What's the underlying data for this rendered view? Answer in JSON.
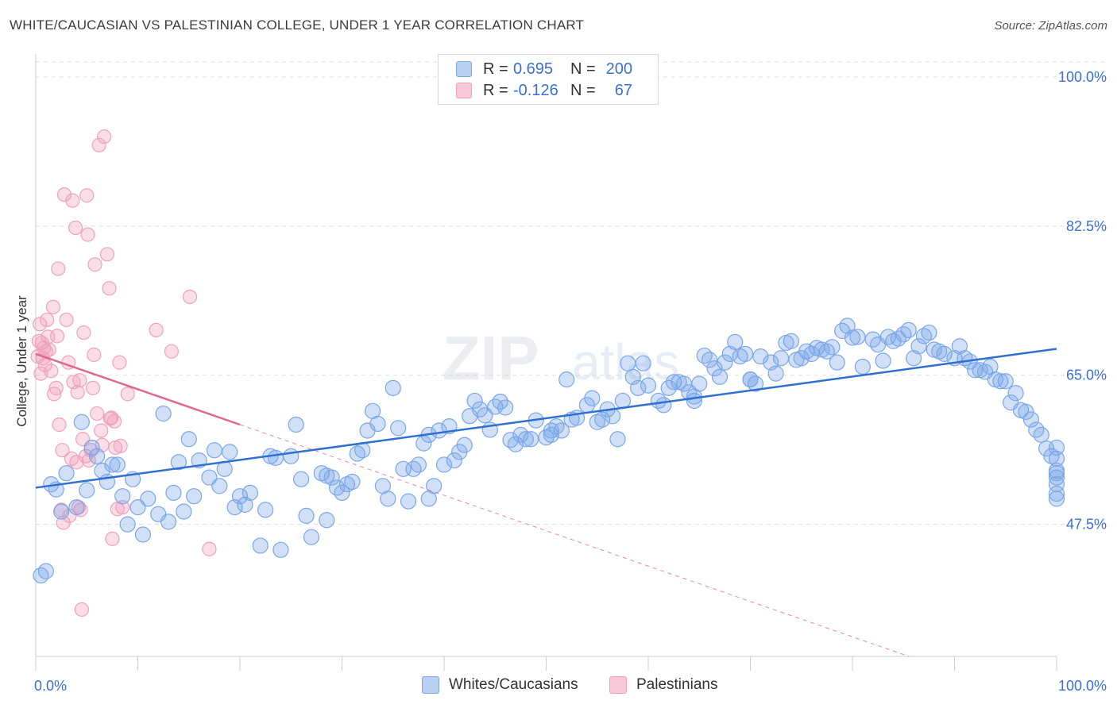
{
  "title": "WHITE/CAUCASIAN VS PALESTINIAN COLLEGE, UNDER 1 YEAR CORRELATION CHART",
  "source": "Source: ZipAtlas.com",
  "watermark": "ZIPatlas",
  "legend": {
    "rows": [
      {
        "r_label": "R =",
        "r_value": "0.695",
        "n_label": "N =",
        "n_value": "200"
      },
      {
        "r_label": "R =",
        "r_value": "-0.126",
        "n_label": "N =",
        "n_value": "67"
      }
    ]
  },
  "bottom_legend": [
    "Whites/Caucasians",
    "Palestinians"
  ],
  "chart_data": {
    "type": "scatter",
    "title": "WHITE/CAUCASIAN VS PALESTINIAN COLLEGE, UNDER 1 YEAR CORRELATION CHART",
    "xlabel": "",
    "ylabel": "College, Under 1 year",
    "xlim": [
      0,
      100
    ],
    "ylim": [
      32,
      100
    ],
    "x_tick_labels": [
      "0.0%",
      "100.0%"
    ],
    "y_ticks": [
      47.5,
      65.0,
      82.5,
      100.0
    ],
    "y_tick_labels": [
      "47.5%",
      "65.0%",
      "82.5%",
      "100.0%"
    ],
    "grid": true,
    "colors": {
      "blue": "#7aa7e8",
      "blue_line": "#2f6fd0",
      "pink": "#f0a1bb",
      "pink_line": "#e0678f",
      "tick_text": "#3a6fd8"
    },
    "series": [
      {
        "name": "Whites/Caucasians",
        "color": "#7aa7e8",
        "trend": {
          "x": [
            0,
            100
          ],
          "y": [
            51.8,
            68.1
          ]
        },
        "points": [
          [
            0.5,
            41.5
          ],
          [
            1,
            42
          ],
          [
            1.5,
            52.2
          ],
          [
            2,
            51.6
          ],
          [
            2.5,
            49
          ],
          [
            3,
            53.5
          ],
          [
            4,
            49.5
          ],
          [
            4.5,
            59.5
          ],
          [
            5,
            51.5
          ],
          [
            5.5,
            56.5
          ],
          [
            6,
            55.5
          ],
          [
            6.5,
            53.8
          ],
          [
            7,
            52.5
          ],
          [
            7.5,
            54.5
          ],
          [
            8,
            54.5
          ],
          [
            8.5,
            50.8
          ],
          [
            9,
            47.5
          ],
          [
            9.5,
            52.8
          ],
          [
            10,
            49.5
          ],
          [
            10.5,
            46.3
          ],
          [
            11,
            50.5
          ],
          [
            12,
            48.7
          ],
          [
            12.5,
            60.5
          ],
          [
            13,
            47.8
          ],
          [
            13.5,
            51.2
          ],
          [
            14,
            54.8
          ],
          [
            14.5,
            49
          ],
          [
            15,
            57.5
          ],
          [
            15.5,
            50.8
          ],
          [
            16,
            55
          ],
          [
            17,
            53
          ],
          [
            17.5,
            56.2
          ],
          [
            18,
            52
          ],
          [
            18.5,
            54
          ],
          [
            19,
            56
          ],
          [
            19.5,
            49.5
          ],
          [
            20,
            50.8
          ],
          [
            20.5,
            49.8
          ],
          [
            21,
            51.2
          ],
          [
            22,
            45
          ],
          [
            22.5,
            49.2
          ],
          [
            23,
            55.5
          ],
          [
            23.5,
            55.3
          ],
          [
            24,
            44.5
          ],
          [
            25,
            55.5
          ],
          [
            25.5,
            59.2
          ],
          [
            26,
            52.8
          ],
          [
            26.5,
            48.5
          ],
          [
            27,
            46
          ],
          [
            28,
            53.5
          ],
          [
            28.5,
            48
          ],
          [
            29,
            53
          ],
          [
            29.5,
            51.8
          ],
          [
            30,
            51.2
          ],
          [
            30.5,
            52.2
          ],
          [
            31,
            52.5
          ],
          [
            31.5,
            55.8
          ],
          [
            32,
            56.2
          ],
          [
            32.5,
            58.5
          ],
          [
            33,
            60.8
          ],
          [
            33.5,
            59.3
          ],
          [
            34,
            52
          ],
          [
            34.5,
            50.5
          ],
          [
            35,
            63.5
          ],
          [
            35.5,
            58.8
          ],
          [
            36,
            54
          ],
          [
            36.5,
            50.2
          ],
          [
            37,
            54
          ],
          [
            37.5,
            54.5
          ],
          [
            38,
            57
          ],
          [
            38.5,
            50.5
          ],
          [
            39,
            52
          ],
          [
            39.5,
            58.5
          ],
          [
            40,
            54.5
          ],
          [
            40.5,
            59
          ],
          [
            41,
            55
          ],
          [
            41.5,
            56
          ],
          [
            42,
            56.8
          ],
          [
            42.5,
            60.2
          ],
          [
            43,
            62
          ],
          [
            43.5,
            61
          ],
          [
            44,
            60.3
          ],
          [
            44.5,
            58.6
          ],
          [
            45,
            61.3
          ],
          [
            45.5,
            61.9
          ],
          [
            46,
            61.2
          ],
          [
            46.5,
            57.4
          ],
          [
            47,
            56.9
          ],
          [
            47.5,
            58
          ],
          [
            48,
            57.5
          ],
          [
            48.5,
            57.5
          ],
          [
            49,
            59.7
          ],
          [
            50,
            57.7
          ],
          [
            50.5,
            58.5
          ],
          [
            51,
            59
          ],
          [
            51.5,
            58.5
          ],
          [
            52,
            64.5
          ],
          [
            52.5,
            59.8
          ],
          [
            53,
            60
          ],
          [
            54,
            61.5
          ],
          [
            54.5,
            62.3
          ],
          [
            55,
            59.5
          ],
          [
            55.5,
            59.8
          ],
          [
            56,
            61
          ],
          [
            56.5,
            60.2
          ],
          [
            57,
            57.5
          ],
          [
            57.5,
            62
          ],
          [
            58,
            66.4
          ],
          [
            58.5,
            64.8
          ],
          [
            59,
            63.5
          ],
          [
            59.5,
            66.4
          ],
          [
            60,
            63.8
          ],
          [
            61,
            62
          ],
          [
            61.5,
            61.5
          ],
          [
            62,
            63.5
          ],
          [
            62.5,
            64.2
          ],
          [
            63,
            64.2
          ],
          [
            63.5,
            64
          ],
          [
            64,
            63
          ],
          [
            64.5,
            62.5
          ],
          [
            65,
            64
          ],
          [
            65.5,
            67.3
          ],
          [
            66,
            66.8
          ],
          [
            66.5,
            65.8
          ],
          [
            67,
            64.8
          ],
          [
            67.5,
            66.5
          ],
          [
            68,
            67.5
          ],
          [
            68.5,
            68.9
          ],
          [
            69,
            67.2
          ],
          [
            69.5,
            67.5
          ],
          [
            70,
            64.5
          ],
          [
            70.5,
            64
          ],
          [
            71,
            67.2
          ],
          [
            72,
            66.5
          ],
          [
            72.5,
            65.2
          ],
          [
            73,
            67
          ],
          [
            73.5,
            68.8
          ],
          [
            74,
            69
          ],
          [
            74.5,
            66.8
          ],
          [
            75,
            67
          ],
          [
            75.5,
            67.8
          ],
          [
            76,
            67.5
          ],
          [
            76.5,
            68.2
          ],
          [
            77,
            68
          ],
          [
            77.5,
            67.8
          ],
          [
            78,
            68.3
          ],
          [
            78.5,
            66.5
          ],
          [
            79,
            70.2
          ],
          [
            79.5,
            70.8
          ],
          [
            80,
            69.4
          ],
          [
            80.5,
            69.5
          ],
          [
            81,
            66
          ],
          [
            82,
            69.2
          ],
          [
            82.5,
            68.6
          ],
          [
            83,
            66.7
          ],
          [
            83.5,
            69.5
          ],
          [
            84,
            69
          ],
          [
            84.5,
            69.3
          ],
          [
            85,
            69.8
          ],
          [
            85.5,
            70.3
          ],
          [
            86,
            67
          ],
          [
            86.5,
            68.4
          ],
          [
            87,
            69.6
          ],
          [
            87.5,
            70
          ],
          [
            88,
            68
          ],
          [
            88.5,
            67.8
          ],
          [
            89,
            67.5
          ],
          [
            90,
            67
          ],
          [
            90.5,
            68.4
          ],
          [
            91,
            67
          ],
          [
            91.5,
            66.6
          ],
          [
            92,
            65.6
          ],
          [
            92.5,
            65.6
          ],
          [
            93,
            65.4
          ],
          [
            93.5,
            66
          ],
          [
            94,
            64.5
          ],
          [
            94.5,
            64.3
          ],
          [
            95,
            64.3
          ],
          [
            95.5,
            61.8
          ],
          [
            96,
            62.9
          ],
          [
            96.5,
            60.9
          ],
          [
            97,
            60.7
          ],
          [
            97.5,
            59.8
          ],
          [
            98,
            58.6
          ],
          [
            98.5,
            58
          ],
          [
            99,
            56.4
          ],
          [
            99.5,
            55.5
          ],
          [
            100,
            55.2
          ],
          [
            100.5,
            53.8
          ],
          [
            101,
            53.5
          ],
          [
            101.5,
            53
          ],
          [
            102,
            52.2
          ],
          [
            102.5,
            51.1
          ],
          [
            103,
            50.5
          ],
          [
            103.5,
            56.5
          ],
          [
            50.5,
            58
          ],
          [
            38.5,
            58
          ],
          [
            28.5,
            53.2
          ],
          [
            64.5,
            62
          ],
          [
            70,
            64.5
          ]
        ]
      },
      {
        "name": "Palestinians",
        "color": "#f0a1bb",
        "trend": {
          "x": [
            0,
            20
          ],
          "y": [
            67.5,
            59.2
          ]
        },
        "points": [
          [
            0.2,
            67.2
          ],
          [
            0.3,
            69
          ],
          [
            0.4,
            71
          ],
          [
            0.5,
            65.2
          ],
          [
            0.6,
            68.8
          ],
          [
            0.7,
            67
          ],
          [
            0.8,
            68.2
          ],
          [
            0.9,
            66.2
          ],
          [
            1,
            67.8
          ],
          [
            1.1,
            71.5
          ],
          [
            1.2,
            69.5
          ],
          [
            1.3,
            68
          ],
          [
            1.5,
            65.5
          ],
          [
            1.7,
            73
          ],
          [
            1.8,
            62.8
          ],
          [
            2,
            63.5
          ],
          [
            2.1,
            69.6
          ],
          [
            2.2,
            77.5
          ],
          [
            2.3,
            59.2
          ],
          [
            2.5,
            49.2
          ],
          [
            2.6,
            56.2
          ],
          [
            2.7,
            47.7
          ],
          [
            2.8,
            86.2
          ],
          [
            3,
            71.5
          ],
          [
            3.2,
            66.5
          ],
          [
            3.3,
            48.5
          ],
          [
            3.5,
            55.2
          ],
          [
            3.6,
            85.5
          ],
          [
            3.7,
            64.2
          ],
          [
            3.9,
            82.3
          ],
          [
            4,
            54.8
          ],
          [
            4.1,
            63
          ],
          [
            4.2,
            49.5
          ],
          [
            4.3,
            64.4
          ],
          [
            4.4,
            49.2
          ],
          [
            4.5,
            37.5
          ],
          [
            4.6,
            57.5
          ],
          [
            4.7,
            70
          ],
          [
            4.9,
            55.5
          ],
          [
            5,
            86.1
          ],
          [
            5.1,
            81.5
          ],
          [
            5.2,
            55
          ],
          [
            5.4,
            56.2
          ],
          [
            5.6,
            63.5
          ],
          [
            5.7,
            67.4
          ],
          [
            5.8,
            78
          ],
          [
            6,
            60.5
          ],
          [
            6.2,
            92
          ],
          [
            6.4,
            58.5
          ],
          [
            6.5,
            56.8
          ],
          [
            6.7,
            93
          ],
          [
            7,
            79.2
          ],
          [
            7.2,
            75.2
          ],
          [
            7.3,
            59.9
          ],
          [
            7.4,
            60
          ],
          [
            7.5,
            45.8
          ],
          [
            7.7,
            59.6
          ],
          [
            7.8,
            56.5
          ],
          [
            8,
            49.3
          ],
          [
            8.2,
            66.5
          ],
          [
            8.3,
            56.7
          ],
          [
            8.5,
            49.5
          ],
          [
            9,
            62.8
          ],
          [
            11.8,
            70.3
          ],
          [
            13.3,
            67.8
          ],
          [
            15.1,
            74.2
          ],
          [
            17,
            44.6
          ]
        ]
      }
    ]
  }
}
